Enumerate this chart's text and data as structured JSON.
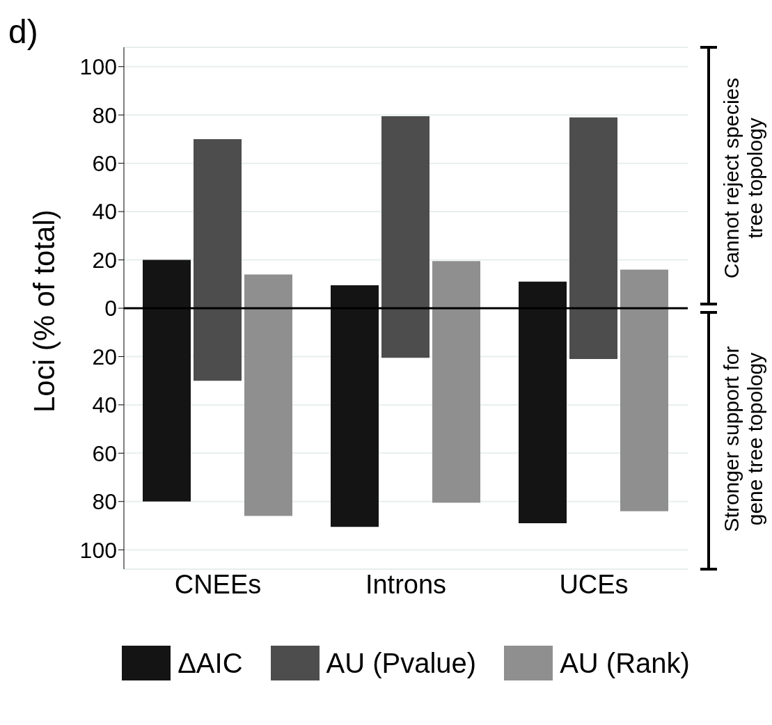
{
  "chart_data": {
    "type": "bar",
    "categories": [
      "CNEEs",
      "Introns",
      "UCEs"
    ],
    "series": [
      {
        "name": "ΔAIC",
        "color": "#141414",
        "values": [
          100,
          100,
          100
        ],
        "base": [
          -80,
          -90.5,
          -89
        ]
      },
      {
        "name": "AU (Pvalue)",
        "color": "#4d4d4d",
        "values": [
          100,
          100,
          100
        ],
        "base": [
          -30,
          -20.5,
          -21
        ]
      },
      {
        "name": "AU (Rank)",
        "color": "#8f8f8f",
        "values": [
          100,
          100,
          100
        ],
        "base": [
          -86,
          -80.5,
          -84
        ]
      }
    ],
    "ylabel": "Loci (% of total)",
    "ylim": [
      -108,
      108
    ],
    "yticks": [
      {
        "value": -100,
        "label": "100"
      },
      {
        "value": -80,
        "label": "80"
      },
      {
        "value": -60,
        "label": "60"
      },
      {
        "value": -40,
        "label": "40"
      },
      {
        "value": -20,
        "label": "20"
      },
      0,
      20,
      40,
      60,
      80,
      100
    ],
    "grid": "y",
    "legend": "bottom",
    "ref_lines": [
      {
        "axis": "y",
        "value": 0,
        "color": "#000000"
      }
    ],
    "annotations": [
      "d)",
      "Cannot reject species tree topology",
      "Stronger support for gene tree topology"
    ]
  }
}
